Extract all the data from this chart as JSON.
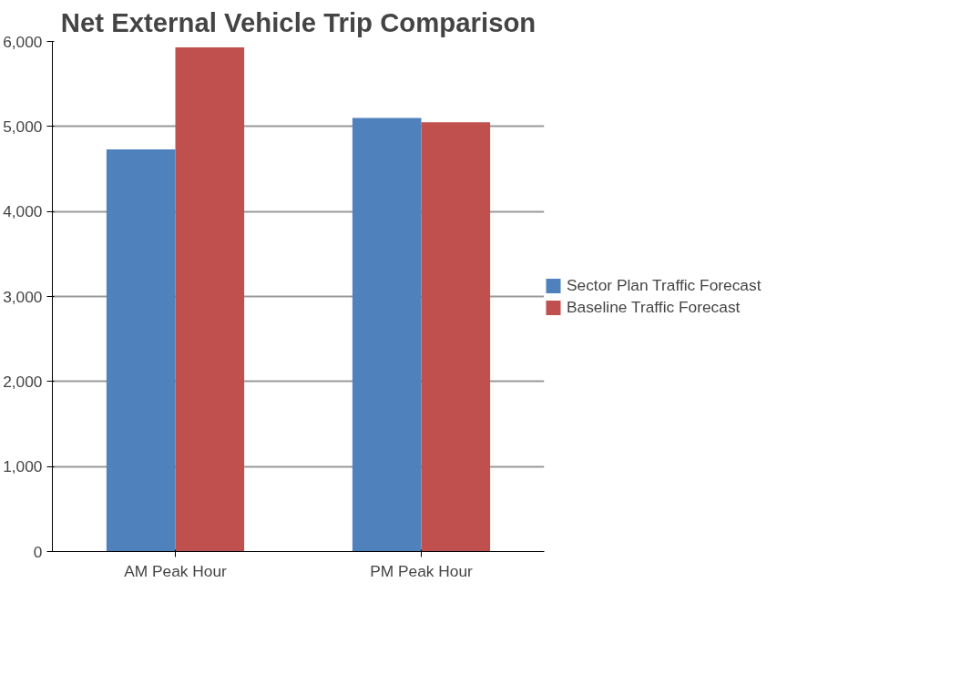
{
  "chart_data": {
    "type": "bar",
    "title": "Net External Vehicle Trip Comparison",
    "categories": [
      "AM Peak Hour",
      "PM Peak Hour"
    ],
    "series": [
      {
        "name": "Sector Plan Traffic Forecast",
        "color": "#4f81bd",
        "values": [
          4730,
          5100
        ]
      },
      {
        "name": "Baseline Traffic Forecast",
        "color": "#c0504d",
        "values": [
          5930,
          5050
        ]
      }
    ],
    "ylim": [
      0,
      6000
    ],
    "yticks": [
      0,
      {
        "value": 1000,
        "label": "1,000"
      },
      {
        "value": 2000,
        "label": "2,000"
      },
      {
        "value": 3000,
        "label": "3,000"
      },
      {
        "value": 4000,
        "label": "4,000"
      },
      {
        "value": 5000,
        "label": "5,000"
      },
      {
        "value": 6000,
        "label": "6,000"
      }
    ],
    "grid": "y",
    "legend": "right"
  }
}
